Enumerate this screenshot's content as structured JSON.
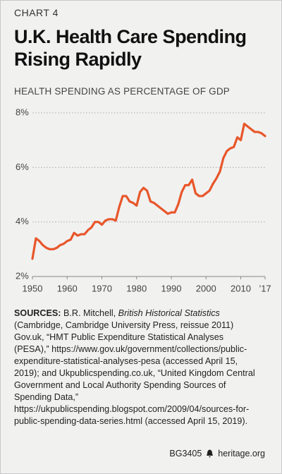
{
  "chart_data": {
    "type": "line",
    "label": "CHART 4",
    "title": "U.K. Health Care Spending Rising Rapidly",
    "subtitle": "HEALTH SPENDING AS PERCENTAGE OF GDP",
    "x": [
      1950,
      1951,
      1952,
      1953,
      1954,
      1955,
      1956,
      1957,
      1958,
      1959,
      1960,
      1961,
      1962,
      1963,
      1964,
      1965,
      1966,
      1967,
      1968,
      1969,
      1970,
      1971,
      1972,
      1973,
      1974,
      1975,
      1976,
      1977,
      1978,
      1979,
      1980,
      1981,
      1982,
      1983,
      1984,
      1985,
      1986,
      1987,
      1988,
      1989,
      1990,
      1991,
      1992,
      1993,
      1994,
      1995,
      1996,
      1997,
      1998,
      1999,
      2000,
      2001,
      2002,
      2003,
      2004,
      2005,
      2006,
      2007,
      2008,
      2009,
      2010,
      2011,
      2012,
      2013,
      2014,
      2015,
      2016,
      2017
    ],
    "series": [
      {
        "name": "Health spending",
        "color": "#e8562a",
        "values": [
          2.65,
          3.4,
          3.3,
          3.15,
          3.05,
          3.0,
          3.0,
          3.05,
          3.15,
          3.2,
          3.3,
          3.35,
          3.6,
          3.5,
          3.55,
          3.55,
          3.7,
          3.8,
          4.0,
          4.0,
          3.9,
          4.05,
          4.1,
          4.1,
          4.05,
          4.55,
          4.95,
          4.95,
          4.75,
          4.7,
          4.6,
          5.1,
          5.25,
          5.15,
          4.75,
          4.7,
          4.6,
          4.5,
          4.4,
          4.3,
          4.35,
          4.35,
          4.65,
          5.1,
          5.35,
          5.35,
          5.55,
          5.05,
          4.95,
          4.95,
          5.05,
          5.15,
          5.4,
          5.6,
          5.85,
          6.35,
          6.6,
          6.7,
          6.75,
          7.1,
          7.0,
          7.6,
          7.5,
          7.4,
          7.3,
          7.3,
          7.25,
          7.15
        ]
      }
    ],
    "xlim": [
      1950,
      2017
    ],
    "xticks": [
      1950,
      1960,
      1970,
      1980,
      1990,
      2000,
      2010,
      {
        "value": 2017,
        "label": "’17"
      }
    ],
    "ylim": [
      2,
      8
    ],
    "yticks": [
      {
        "value": 2,
        "label": "2%"
      },
      {
        "value": 4,
        "label": "4%"
      },
      {
        "value": 6,
        "label": "6%"
      },
      {
        "value": 8,
        "label": "8%"
      }
    ],
    "grid": true
  },
  "sources": {
    "label": "SOURCES:",
    "author": "B.R. Mitchell, ",
    "book": "British Historical Statistics",
    "text": " (Cambridge, Cambridge University Press, reissue 2011) Gov.uk, “HMT Public Expenditure Statistical Analyses (PESA),” https://www.gov.uk/government/collections/public-expenditure-statistical-analyses-pesa (accessed April 15, 2019); and Ukpublicspending.co.uk, “United Kingdom Central Government and Local Authority Spending Sources of Spending Data,” https://ukpublicspending.blogspot.com/2009/04/sources-for-public-spending-data-series.html (accessed April 15, 2019)."
  },
  "footer": {
    "code": "BG3405",
    "site": "heritage.org"
  }
}
